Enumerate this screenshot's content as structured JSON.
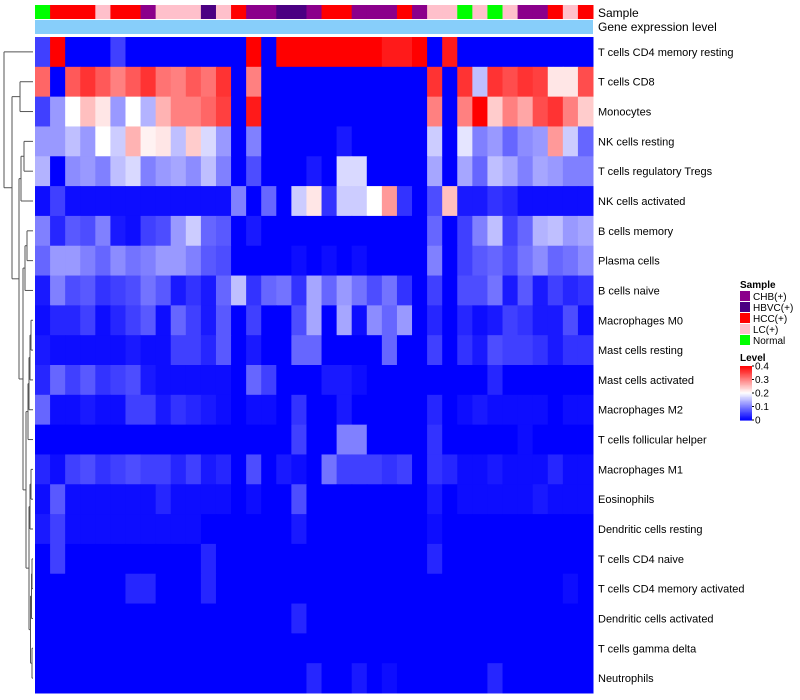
{
  "chart_data": {
    "type": "heatmap",
    "annotation_labels": [
      "Sample",
      "Gene expression level"
    ],
    "rows": [
      "T cells CD4 memory resting",
      "T cells CD8",
      "Monocytes",
      "NK cells resting",
      "T cells regulatory  Tregs",
      "NK cells activated",
      "B cells memory",
      "Plasma cells",
      "B cells naive",
      "Macrophages M0",
      "Mast cells resting",
      "Mast cells activated",
      "Macrophages M2",
      "T cells follicular helper",
      "Macrophages M1",
      "Eosinophils",
      "Dendritic cells resting",
      "T cells CD4 naive",
      "T cells CD4 memory activated",
      "Dendritic cells activated",
      "T cells gamma delta",
      "Neutrophils"
    ],
    "samples": [
      "Normal",
      "HCC(+)",
      "HCC(+)",
      "HCC(+)",
      "LC(+)",
      "HCC(+)",
      "HCC(+)",
      "CHB(+)",
      "LC(+)",
      "LC(+)",
      "LC(+)",
      "HBVC(+)",
      "LC(+)",
      "HCC(+)",
      "CHB(+)",
      "CHB(+)",
      "HBVC(+)",
      "HBVC(+)",
      "CHB(+)",
      "HCC(+)",
      "HCC(+)",
      "CHB(+)",
      "CHB(+)",
      "CHB(+)",
      "HCC(+)",
      "CHB(+)",
      "LC(+)",
      "LC(+)",
      "Normal",
      "LC(+)",
      "Normal",
      "LC(+)",
      "CHB(+)",
      "CHB(+)",
      "HCC(+)",
      "LC(+)",
      "HCC(+)"
    ],
    "values": [
      [
        0.05,
        0.4,
        0.0,
        0.0,
        0.0,
        0.05,
        0.0,
        0.0,
        0.0,
        0.0,
        0.0,
        0.0,
        0.0,
        0.0,
        0.4,
        0.0,
        0.4,
        0.4,
        0.4,
        0.4,
        0.4,
        0.4,
        0.4,
        0.38,
        0.38,
        0.4,
        0.0,
        0.38,
        0.0,
        0.0,
        0.0,
        0.0,
        0.0,
        0.0,
        0.0,
        0.0,
        0.0
      ],
      [
        0.32,
        0.0,
        0.33,
        0.36,
        0.33,
        0.3,
        0.33,
        0.36,
        0.31,
        0.3,
        0.33,
        0.31,
        0.36,
        0.0,
        0.3,
        0.0,
        0.0,
        0.0,
        0.0,
        0.0,
        0.0,
        0.0,
        0.0,
        0.0,
        0.0,
        0.0,
        0.36,
        0.0,
        0.36,
        0.15,
        0.36,
        0.34,
        0.36,
        0.35,
        0.22,
        0.22,
        0.34
      ],
      [
        0.05,
        0.12,
        0.2,
        0.25,
        0.22,
        0.12,
        0.2,
        0.14,
        0.26,
        0.3,
        0.3,
        0.32,
        0.35,
        0.0,
        0.38,
        0.0,
        0.0,
        0.0,
        0.0,
        0.0,
        0.0,
        0.0,
        0.0,
        0.0,
        0.0,
        0.0,
        0.3,
        0.0,
        0.3,
        0.4,
        0.24,
        0.3,
        0.27,
        0.34,
        0.36,
        0.3,
        0.24
      ],
      [
        0.12,
        0.12,
        0.15,
        0.12,
        0.2,
        0.16,
        0.26,
        0.21,
        0.22,
        0.15,
        0.24,
        0.17,
        0.12,
        0.0,
        0.1,
        0.0,
        0.0,
        0.0,
        0.0,
        0.0,
        0.02,
        0.0,
        0.0,
        0.0,
        0.0,
        0.0,
        0.16,
        0.0,
        0.18,
        0.1,
        0.12,
        0.08,
        0.11,
        0.12,
        0.28,
        0.16,
        0.08
      ],
      [
        0.14,
        0.0,
        0.11,
        0.12,
        0.1,
        0.15,
        0.17,
        0.1,
        0.12,
        0.13,
        0.11,
        0.15,
        0.1,
        0.0,
        0.06,
        0.0,
        0.0,
        0.0,
        0.02,
        0.0,
        0.17,
        0.17,
        0.0,
        0.0,
        0.0,
        0.0,
        0.13,
        0.0,
        0.13,
        0.08,
        0.15,
        0.13,
        0.1,
        0.13,
        0.12,
        0.1,
        0.1
      ],
      [
        0.01,
        0.05,
        0.01,
        0.01,
        0.01,
        0.01,
        0.01,
        0.01,
        0.01,
        0.01,
        0.01,
        0.01,
        0.01,
        0.1,
        0.0,
        0.08,
        0.0,
        0.16,
        0.22,
        0.04,
        0.16,
        0.16,
        0.2,
        0.28,
        0.04,
        0.0,
        0.06,
        0.25,
        0.02,
        0.02,
        0.04,
        0.03,
        0.01,
        0.01,
        0.01,
        0.01,
        0.01
      ],
      [
        0.1,
        0.03,
        0.07,
        0.06,
        0.1,
        0.02,
        0.01,
        0.05,
        0.06,
        0.12,
        0.16,
        0.08,
        0.07,
        0.0,
        0.02,
        0.0,
        0.0,
        0.0,
        0.0,
        0.0,
        0.0,
        0.0,
        0.0,
        0.0,
        0.0,
        0.0,
        0.08,
        0.0,
        0.05,
        0.1,
        0.15,
        0.05,
        0.08,
        0.14,
        0.15,
        0.12,
        0.13
      ],
      [
        0.08,
        0.12,
        0.12,
        0.1,
        0.08,
        0.11,
        0.09,
        0.1,
        0.12,
        0.12,
        0.1,
        0.07,
        0.06,
        0.0,
        0.0,
        0.0,
        0.0,
        0.01,
        0.0,
        0.01,
        0.0,
        0.01,
        0.0,
        0.0,
        0.0,
        0.0,
        0.1,
        0.0,
        0.05,
        0.07,
        0.08,
        0.06,
        0.09,
        0.11,
        0.08,
        0.09,
        0.11
      ],
      [
        0.02,
        0.1,
        0.06,
        0.07,
        0.04,
        0.05,
        0.06,
        0.09,
        0.07,
        0.02,
        0.04,
        0.02,
        0.08,
        0.15,
        0.04,
        0.08,
        0.09,
        0.04,
        0.13,
        0.08,
        0.12,
        0.09,
        0.06,
        0.09,
        0.04,
        0.0,
        0.05,
        0.0,
        0.06,
        0.06,
        0.09,
        0.02,
        0.07,
        0.02,
        0.05,
        0.03,
        0.04
      ],
      [
        0.01,
        0.03,
        0.03,
        0.05,
        0.01,
        0.03,
        0.05,
        0.07,
        0.01,
        0.08,
        0.05,
        0.02,
        0.07,
        0.0,
        0.05,
        0.0,
        0.0,
        0.06,
        0.13,
        0.0,
        0.13,
        0.01,
        0.11,
        0.08,
        0.12,
        0.0,
        0.03,
        0.0,
        0.03,
        0.01,
        0.02,
        0.05,
        0.04,
        0.02,
        0.02,
        0.06,
        0.01
      ],
      [
        0.02,
        0.01,
        0.01,
        0.01,
        0.01,
        0.01,
        0.02,
        0.01,
        0.01,
        0.05,
        0.05,
        0.03,
        0.07,
        0.0,
        0.02,
        0.0,
        0.0,
        0.08,
        0.08,
        0.0,
        0.0,
        0.0,
        0.0,
        0.08,
        0.0,
        0.0,
        0.05,
        0.0,
        0.04,
        0.02,
        0.06,
        0.05,
        0.05,
        0.04,
        0.02,
        0.04,
        0.04
      ],
      [
        0.03,
        0.08,
        0.05,
        0.07,
        0.04,
        0.05,
        0.06,
        0.02,
        0.01,
        0.01,
        0.01,
        0.01,
        0.01,
        0.0,
        0.08,
        0.05,
        0.0,
        0.0,
        0.0,
        0.02,
        0.02,
        0.01,
        0.0,
        0.0,
        0.0,
        0.0,
        0.0,
        0.0,
        0.0,
        0.0,
        0.03,
        0.0,
        0.0,
        0.0,
        0.0,
        0.0,
        0.0
      ],
      [
        0.08,
        0.01,
        0.01,
        0.02,
        0.01,
        0.01,
        0.05,
        0.05,
        0.02,
        0.04,
        0.03,
        0.02,
        0.01,
        0.0,
        0.01,
        0.01,
        0.0,
        0.04,
        0.0,
        0.0,
        0.02,
        0.0,
        0.0,
        0.0,
        0.0,
        0.0,
        0.03,
        0.0,
        0.01,
        0.02,
        0.01,
        0.01,
        0.01,
        0.01,
        0.0,
        0.01,
        0.01
      ],
      [
        0.0,
        0.0,
        0.0,
        0.0,
        0.0,
        0.0,
        0.0,
        0.0,
        0.0,
        0.0,
        0.0,
        0.0,
        0.0,
        0.0,
        0.0,
        0.0,
        0.0,
        0.05,
        0.0,
        0.0,
        0.1,
        0.1,
        0.0,
        0.0,
        0.0,
        0.0,
        0.04,
        0.0,
        0.0,
        0.0,
        0.0,
        0.0,
        0.01,
        0.0,
        0.0,
        0.0,
        0.0
      ],
      [
        0.03,
        0.01,
        0.05,
        0.06,
        0.04,
        0.05,
        0.06,
        0.05,
        0.05,
        0.03,
        0.05,
        0.02,
        0.03,
        0.0,
        0.06,
        0.0,
        0.02,
        0.01,
        0.0,
        0.09,
        0.05,
        0.05,
        0.05,
        0.04,
        0.05,
        0.0,
        0.04,
        0.03,
        0.01,
        0.01,
        0.02,
        0.01,
        0.01,
        0.01,
        0.03,
        0.01,
        0.01
      ],
      [
        0.01,
        0.07,
        0.01,
        0.01,
        0.01,
        0.01,
        0.01,
        0.01,
        0.03,
        0.01,
        0.01,
        0.01,
        0.01,
        0.0,
        0.01,
        0.0,
        0.0,
        0.06,
        0.0,
        0.0,
        0.0,
        0.0,
        0.0,
        0.0,
        0.0,
        0.0,
        0.02,
        0.0,
        0.01,
        0.01,
        0.01,
        0.01,
        0.01,
        0.02,
        0.01,
        0.01,
        0.01
      ],
      [
        0.02,
        0.05,
        0.01,
        0.01,
        0.01,
        0.01,
        0.01,
        0.01,
        0.01,
        0.01,
        0.01,
        0.0,
        0.0,
        0.0,
        0.0,
        0.0,
        0.0,
        0.02,
        0.0,
        0.0,
        0.0,
        0.0,
        0.0,
        0.0,
        0.0,
        0.0,
        0.01,
        0.0,
        0.0,
        0.0,
        0.0,
        0.0,
        0.0,
        0.0,
        0.0,
        0.0,
        0.0
      ],
      [
        0.0,
        0.05,
        0.0,
        0.0,
        0.0,
        0.0,
        0.0,
        0.0,
        0.0,
        0.0,
        0.0,
        0.03,
        0.0,
        0.0,
        0.0,
        0.0,
        0.0,
        0.0,
        0.0,
        0.0,
        0.0,
        0.0,
        0.0,
        0.0,
        0.0,
        0.0,
        0.03,
        0.0,
        0.0,
        0.0,
        0.0,
        0.0,
        0.0,
        0.0,
        0.0,
        0.0,
        0.0
      ],
      [
        0.0,
        0.0,
        0.0,
        0.0,
        0.0,
        0.0,
        0.03,
        0.03,
        0.0,
        0.0,
        0.0,
        0.03,
        0.0,
        0.0,
        0.0,
        0.0,
        0.0,
        0.0,
        0.0,
        0.0,
        0.0,
        0.0,
        0.0,
        0.0,
        0.0,
        0.0,
        0.0,
        0.0,
        0.0,
        0.0,
        0.0,
        0.0,
        0.0,
        0.0,
        0.0,
        0.01,
        0.0
      ],
      [
        0.0,
        0.0,
        0.0,
        0.0,
        0.0,
        0.0,
        0.0,
        0.0,
        0.0,
        0.0,
        0.0,
        0.0,
        0.0,
        0.0,
        0.0,
        0.0,
        0.0,
        0.03,
        0.0,
        0.0,
        0.0,
        0.0,
        0.0,
        0.0,
        0.0,
        0.0,
        0.0,
        0.0,
        0.0,
        0.0,
        0.0,
        0.0,
        0.0,
        0.0,
        0.0,
        0.0,
        0.0
      ],
      [
        0.0,
        0.0,
        0.0,
        0.0,
        0.0,
        0.0,
        0.0,
        0.0,
        0.0,
        0.0,
        0.0,
        0.0,
        0.0,
        0.0,
        0.0,
        0.0,
        0.0,
        0.0,
        0.0,
        0.0,
        0.0,
        0.0,
        0.0,
        0.0,
        0.0,
        0.0,
        0.0,
        0.0,
        0.0,
        0.0,
        0.0,
        0.0,
        0.0,
        0.0,
        0.0,
        0.0,
        0.0
      ],
      [
        0.0,
        0.0,
        0.0,
        0.0,
        0.0,
        0.0,
        0.0,
        0.0,
        0.0,
        0.0,
        0.0,
        0.0,
        0.0,
        0.0,
        0.0,
        0.0,
        0.0,
        0.0,
        0.03,
        0.0,
        0.0,
        0.02,
        0.0,
        0.01,
        0.0,
        0.0,
        0.0,
        0.0,
        0.0,
        0.0,
        0.03,
        0.0,
        0.0,
        0.0,
        0.0,
        0.0,
        0.0
      ]
    ],
    "color_scale": {
      "min": 0,
      "max": 0.4,
      "low": "#0000ff",
      "mid": "#ffffff",
      "high": "#ff0000"
    },
    "legend": {
      "sample_title": "Sample",
      "sample_entries": [
        {
          "label": "CHB(+)",
          "color": "#8b008b"
        },
        {
          "label": "HBVC(+)",
          "color": "#4b0082"
        },
        {
          "label": "HCC(+)",
          "color": "#ff0000"
        },
        {
          "label": "LC(+)",
          "color": "#ffc0cb"
        },
        {
          "label": "Normal",
          "color": "#00ff00"
        }
      ],
      "level_title": "Level",
      "level_ticks": [
        {
          "value": 0.4,
          "label": "0.4"
        },
        {
          "value": 0.3,
          "label": "0.3"
        },
        {
          "value": 0.2,
          "label": "0.2"
        },
        {
          "value": 0.1,
          "label": "0.1"
        },
        {
          "value": 0,
          "label": "0"
        }
      ]
    },
    "expression_bar_color": "#87cefa",
    "dendrogram": "rows"
  }
}
